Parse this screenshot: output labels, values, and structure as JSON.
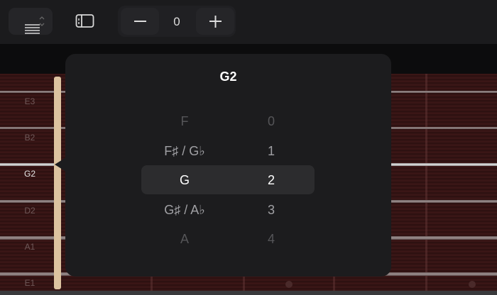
{
  "toolbar": {
    "stepper_value": "0",
    "icons": [
      "list-icon",
      "sidebar-icon",
      "minus-icon",
      "plus-icon"
    ]
  },
  "strings": [
    {
      "label": "E3"
    },
    {
      "label": "B2"
    },
    {
      "label": "G2",
      "selected": true
    },
    {
      "label": "D2"
    },
    {
      "label": "A1"
    },
    {
      "label": "E1"
    }
  ],
  "popover": {
    "title": "G2",
    "rows": [
      {
        "note": "F",
        "fret": "0"
      },
      {
        "note": "F♯ / G♭",
        "fret": "1"
      },
      {
        "note": "G",
        "fret": "2",
        "selected": true
      },
      {
        "note": "G♯ / A♭",
        "fret": "3"
      },
      {
        "note": "A",
        "fret": "4"
      }
    ]
  },
  "colors": {
    "popover_bg": "#1c1c1e",
    "nut": "#dcc3a0",
    "fretboard": "#331313"
  }
}
